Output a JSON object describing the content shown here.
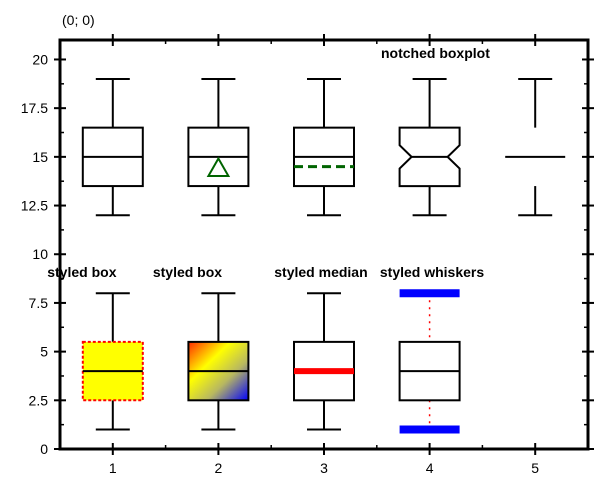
{
  "coordinate_readout": "(0; 0)",
  "colors": {
    "axis": "#000000",
    "yellow": "#ffff00",
    "red": "#ff0000",
    "blue": "#0000ff",
    "green": "#006400",
    "orange": "#ff6a00"
  },
  "chart_data": {
    "type": "boxplot",
    "title": "",
    "xlabel": "",
    "ylabel": "",
    "xlim": [
      0.5,
      5.5
    ],
    "ylim": [
      0,
      21
    ],
    "x_ticks": [
      1,
      2,
      3,
      4,
      5
    ],
    "x_tick_labels": [
      "1",
      "2",
      "3",
      "4",
      "5"
    ],
    "y_ticks": [
      0,
      2.5,
      5,
      7.5,
      10,
      12.5,
      15,
      17.5,
      20
    ],
    "y_tick_labels": [
      "0",
      "2.5",
      "5",
      "7.5",
      "10",
      "12.5",
      "15",
      "17.5",
      "20"
    ],
    "grid": false,
    "boxes": [
      {
        "x": 1,
        "min": 12,
        "q1": 13.5,
        "median": 15,
        "q3": 16.5,
        "max": 19,
        "style": "default"
      },
      {
        "x": 2,
        "min": 12,
        "q1": 13.5,
        "median": 15,
        "q3": 16.5,
        "max": 19,
        "mean": 14.4,
        "style": "mean-triangle"
      },
      {
        "x": 3,
        "min": 12,
        "q1": 13.5,
        "median": 15,
        "q3": 16.5,
        "max": 19,
        "mean": 14.5,
        "style": "mean-dashed-line"
      },
      {
        "x": 4,
        "min": 12,
        "q1": 13.5,
        "median": 15,
        "q3": 16.5,
        "max": 19,
        "notch_low": 14.4,
        "notch_high": 15.6,
        "style": "notched"
      },
      {
        "x": 5,
        "min": 12,
        "q1": 13.5,
        "median": 15,
        "q3": 16.5,
        "max": 19,
        "style": "no-box"
      },
      {
        "x": 1,
        "min": 1,
        "q1": 2.5,
        "median": 4,
        "q3": 5.5,
        "max": 8,
        "style": "styled-box-yellow"
      },
      {
        "x": 2,
        "min": 1,
        "q1": 2.5,
        "median": 4,
        "q3": 5.5,
        "max": 8,
        "style": "styled-box-gradient"
      },
      {
        "x": 3,
        "min": 1,
        "q1": 2.5,
        "median": 4,
        "q3": 5.5,
        "max": 8,
        "style": "styled-median"
      },
      {
        "x": 4,
        "min": 1,
        "q1": 2.5,
        "median": 4,
        "q3": 5.5,
        "max": 8,
        "style": "styled-whiskers"
      }
    ],
    "annotations": [
      {
        "text": "notched boxplot",
        "x": 4.8,
        "y": 20.5
      },
      {
        "text": "styled box",
        "x": 0.9,
        "y": 9.1
      },
      {
        "text": "styled box",
        "x": 1.9,
        "y": 9.1
      },
      {
        "text": "styled median",
        "x": 3.05,
        "y": 9.1
      },
      {
        "text": "styled whiskers",
        "x": 4.05,
        "y": 9.1
      }
    ]
  }
}
